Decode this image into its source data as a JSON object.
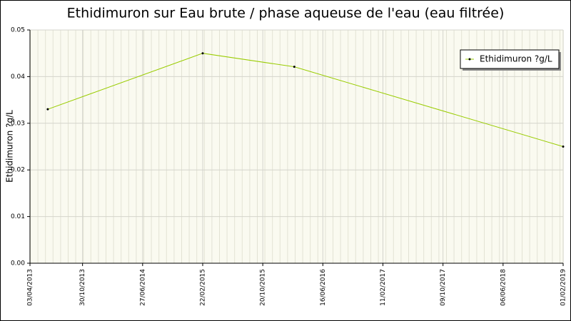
{
  "chart_data": {
    "type": "line",
    "title": "Ethidimuron sur Eau brute / phase aqueuse de l'eau (eau filtrée)",
    "y_label": "Ethidimuron ?g/L",
    "x": [
      "13/06/2013",
      "22/02/2015",
      "23/02/2016",
      "01/02/2019"
    ],
    "series": [
      {
        "name": "Ethidimuron ?g/L",
        "color": "#99cc00",
        "values": [
          0.033,
          0.045,
          0.0421,
          0.025
        ]
      }
    ],
    "xlim": [
      "03/04/2013",
      "01/02/2019"
    ],
    "xticks": [
      "03/04/2013",
      "30/10/2013",
      "27/06/2014",
      "22/02/2015",
      "20/10/2015",
      "16/06/2016",
      "11/02/2017",
      "09/10/2017",
      "06/06/2018",
      "01/02/2019"
    ],
    "ylim": [
      0,
      0.05
    ],
    "yticks": [
      {
        "value": 0,
        "label": "0.00"
      },
      0.01,
      0.02,
      0.03,
      0.04,
      0.05
    ],
    "grid": true,
    "legend": "top-right"
  }
}
